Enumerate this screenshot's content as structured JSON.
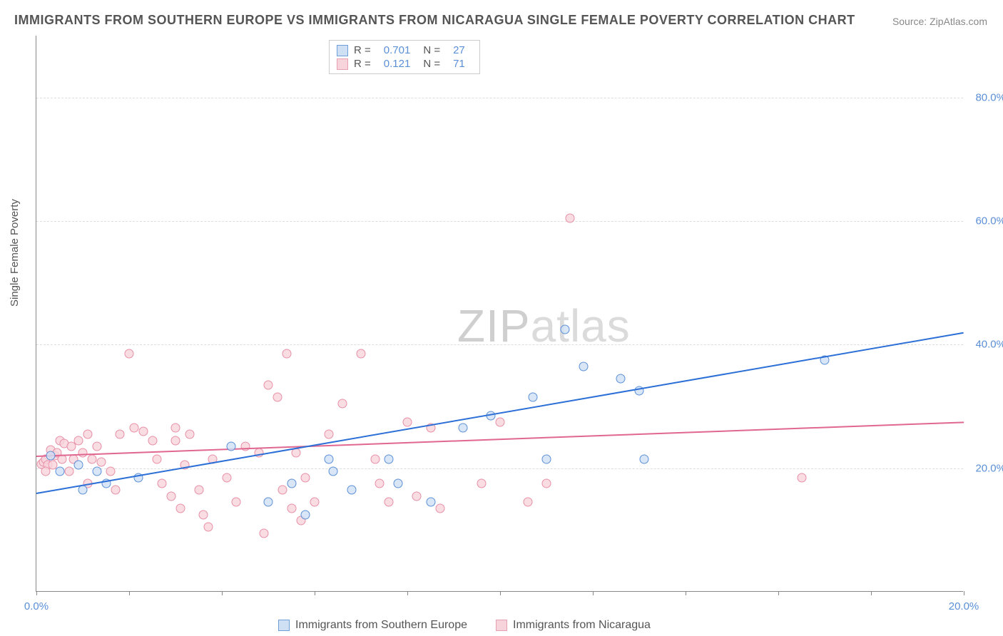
{
  "title": "IMMIGRANTS FROM SOUTHERN EUROPE VS IMMIGRANTS FROM NICARAGUA SINGLE FEMALE POVERTY CORRELATION CHART",
  "source": "Source: ZipAtlas.com",
  "y_axis_label": "Single Female Poverty",
  "watermark_bold": "ZIP",
  "watermark_light": "atlas",
  "chart": {
    "type": "scatter",
    "background_color": "#ffffff",
    "grid_color": "#dddddd",
    "axis_color": "#888888",
    "xlim": [
      0,
      20
    ],
    "ylim": [
      0,
      90
    ],
    "x_ticks": [
      0,
      2,
      4,
      6,
      8,
      10,
      12,
      14,
      16,
      18,
      20
    ],
    "x_tick_labels": {
      "0": "0.0%",
      "20": "20.0%"
    },
    "y_ticks": [
      20,
      40,
      60,
      80
    ],
    "y_tick_labels": [
      "20.0%",
      "40.0%",
      "60.0%",
      "80.0%"
    ],
    "tick_label_color": "#5b8fd6",
    "tick_label_fontsize": 15
  },
  "stats_legend": {
    "rows": [
      {
        "swatch_fill": "#cfe0f5",
        "swatch_border": "#6f9fd8",
        "r_label": "R =",
        "r_value": "0.701",
        "n_label": "N =",
        "n_value": "27"
      },
      {
        "swatch_fill": "#f7d4dc",
        "swatch_border": "#e7a0b2",
        "r_label": "R =",
        "r_value": "0.121",
        "n_label": "N =",
        "n_value": "71"
      }
    ]
  },
  "bottom_legend": {
    "items": [
      {
        "swatch_fill": "#cfe0f5",
        "swatch_border": "#6f9fd8",
        "label": "Immigrants from Southern Europe"
      },
      {
        "swatch_fill": "#f7d4dc",
        "swatch_border": "#e7a0b2",
        "label": "Immigrants from Nicaragua"
      }
    ]
  },
  "series": {
    "southern_europe": {
      "fill": "#cfe0f5cc",
      "stroke": "#5b8fd6",
      "marker_size": 13,
      "trend_color": "#2c6fd6",
      "trend_start": [
        0,
        16
      ],
      "trend_end": [
        20,
        42
      ],
      "points": [
        [
          0.3,
          23.5
        ],
        [
          0.5,
          21
        ],
        [
          0.9,
          22
        ],
        [
          1.3,
          21
        ],
        [
          1.0,
          18
        ],
        [
          1.5,
          19
        ],
        [
          2.2,
          20
        ],
        [
          4.2,
          25
        ],
        [
          5.0,
          16
        ],
        [
          5.5,
          19
        ],
        [
          5.8,
          14
        ],
        [
          6.3,
          23
        ],
        [
          6.4,
          21
        ],
        [
          6.8,
          18
        ],
        [
          7.6,
          23
        ],
        [
          7.8,
          19
        ],
        [
          8.5,
          16
        ],
        [
          9.2,
          28
        ],
        [
          9.8,
          30
        ],
        [
          10.7,
          33
        ],
        [
          11.0,
          23
        ],
        [
          11.4,
          44
        ],
        [
          11.8,
          38
        ],
        [
          12.6,
          36
        ],
        [
          13.0,
          34
        ],
        [
          13.1,
          23
        ],
        [
          17.0,
          39
        ]
      ]
    },
    "nicaragua": {
      "fill": "#f7d4dccc",
      "stroke": "#e88fa6",
      "marker_size": 13,
      "trend_color": "#e06790",
      "trend_start": [
        0,
        22
      ],
      "trend_end": [
        20,
        27.5
      ],
      "points": [
        [
          0.1,
          22.2
        ],
        [
          0.15,
          22.5
        ],
        [
          0.2,
          23
        ],
        [
          0.25,
          22
        ],
        [
          0.3,
          24.5
        ],
        [
          0.35,
          22
        ],
        [
          0.4,
          23.5
        ],
        [
          0.45,
          24
        ],
        [
          0.5,
          26
        ],
        [
          0.55,
          23
        ],
        [
          0.6,
          25.5
        ],
        [
          0.7,
          21
        ],
        [
          0.75,
          25
        ],
        [
          0.8,
          23
        ],
        [
          0.9,
          26
        ],
        [
          1.0,
          24
        ],
        [
          1.1,
          27
        ],
        [
          1.2,
          23
        ],
        [
          1.3,
          25
        ],
        [
          1.1,
          19
        ],
        [
          1.4,
          22.5
        ],
        [
          1.6,
          21
        ],
        [
          1.7,
          18
        ],
        [
          2.0,
          40
        ],
        [
          1.8,
          27
        ],
        [
          2.1,
          28
        ],
        [
          2.3,
          27.5
        ],
        [
          2.5,
          26
        ],
        [
          2.6,
          23
        ],
        [
          2.7,
          19
        ],
        [
          3.0,
          28
        ],
        [
          2.9,
          17
        ],
        [
          3.1,
          15
        ],
        [
          3.2,
          22
        ],
        [
          3.0,
          26
        ],
        [
          3.3,
          27
        ],
        [
          3.6,
          14
        ],
        [
          3.7,
          12
        ],
        [
          3.8,
          23
        ],
        [
          3.5,
          18
        ],
        [
          4.1,
          20
        ],
        [
          4.3,
          16
        ],
        [
          4.5,
          25
        ],
        [
          4.8,
          24
        ],
        [
          4.9,
          11
        ],
        [
          5.0,
          35
        ],
        [
          5.2,
          33
        ],
        [
          5.3,
          18
        ],
        [
          5.4,
          40
        ],
        [
          5.6,
          24
        ],
        [
          5.5,
          15
        ],
        [
          5.7,
          13
        ],
        [
          5.8,
          20
        ],
        [
          6.0,
          16
        ],
        [
          6.3,
          27
        ],
        [
          6.6,
          32
        ],
        [
          7.0,
          40
        ],
        [
          7.3,
          23
        ],
        [
          7.4,
          19
        ],
        [
          7.6,
          16
        ],
        [
          8.0,
          29
        ],
        [
          8.2,
          17
        ],
        [
          8.5,
          28
        ],
        [
          8.7,
          15
        ],
        [
          9.6,
          19
        ],
        [
          10.0,
          29
        ],
        [
          10.6,
          16
        ],
        [
          11.0,
          19
        ],
        [
          11.5,
          62
        ],
        [
          16.5,
          20
        ],
        [
          0.2,
          21
        ]
      ]
    }
  }
}
